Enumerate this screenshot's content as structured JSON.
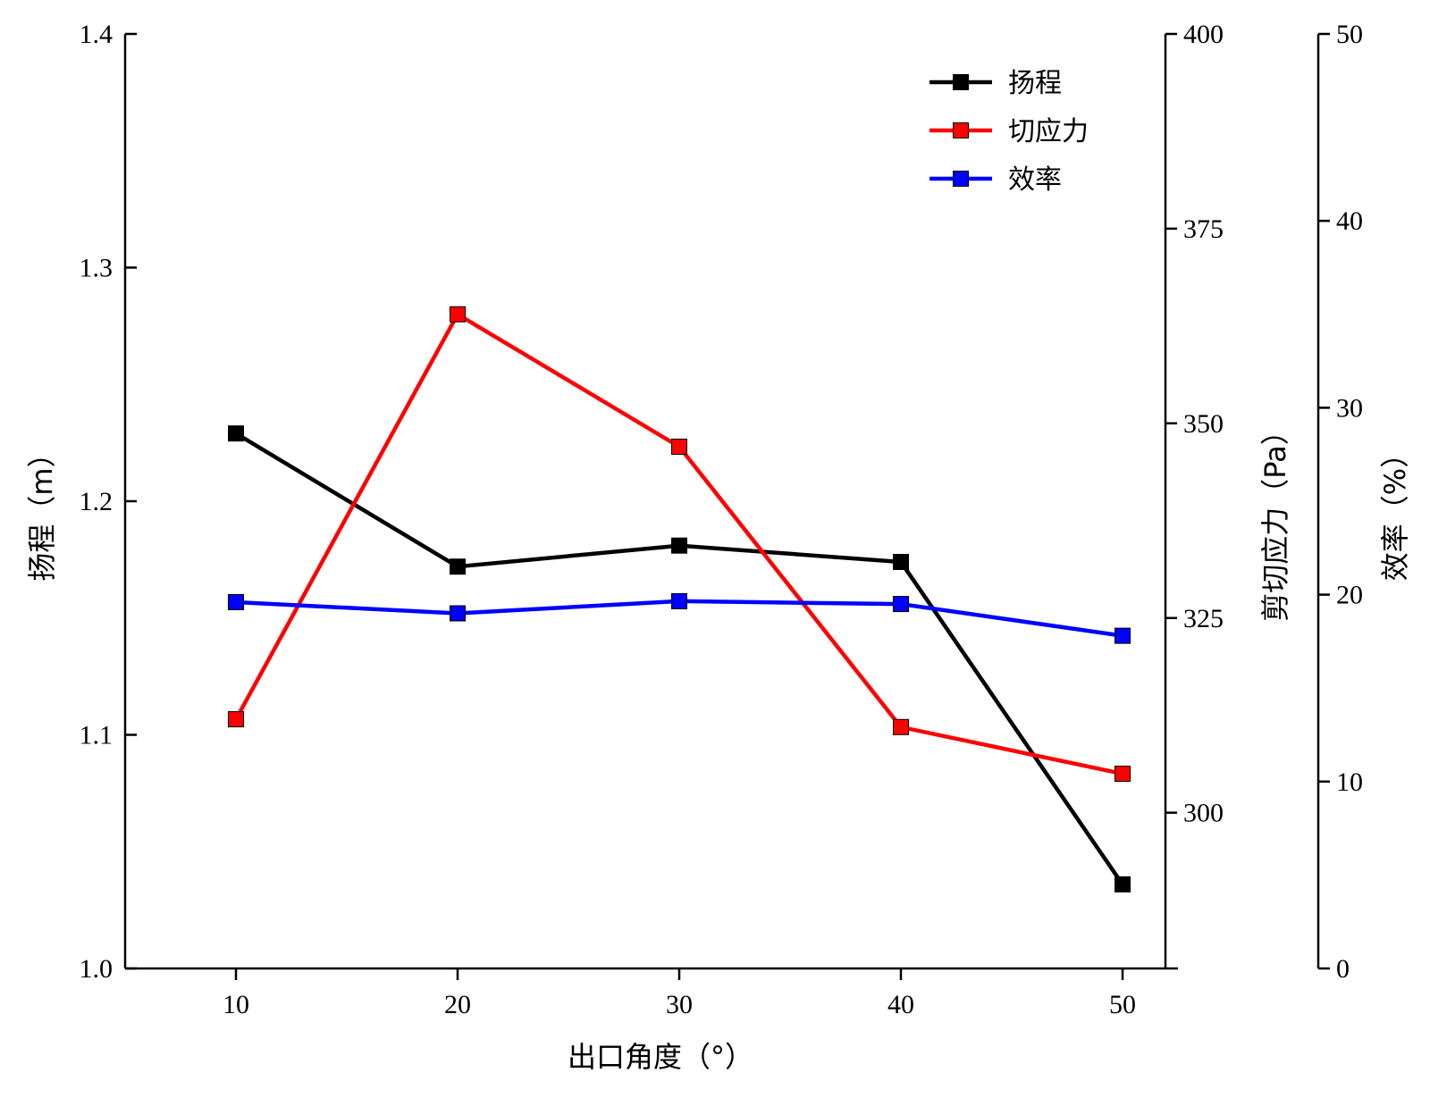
{
  "chart_data": {
    "type": "line",
    "x": [
      10,
      20,
      30,
      40,
      50
    ],
    "xlabel": "出口角度（°）",
    "x_ticks": [
      "10",
      "20",
      "30",
      "40",
      "50"
    ],
    "x_range": [
      5,
      52.5
    ],
    "axes": [
      {
        "id": "left",
        "label": "扬程（m）",
        "range": [
          1.0,
          1.4
        ],
        "ticks": [
          "1.0",
          "1.1",
          "1.2",
          "1.3",
          "1.4"
        ]
      },
      {
        "id": "right1",
        "label": "剪切应力（Pa）",
        "range": [
          280,
          400
        ],
        "ticks": [
          "300",
          "325",
          "350",
          "375",
          "400"
        ]
      },
      {
        "id": "right2",
        "label": "效率（%）",
        "range": [
          0,
          50
        ],
        "ticks": [
          "0",
          "10",
          "20",
          "30",
          "40",
          "50"
        ]
      }
    ],
    "series": [
      {
        "name": "扬程",
        "axis": "left",
        "color": "#000000",
        "values": [
          1.229,
          1.172,
          1.181,
          1.174,
          1.036
        ]
      },
      {
        "name": "切应力",
        "axis": "right1",
        "color": "#ff0000",
        "values": [
          312,
          364,
          347,
          311,
          305
        ]
      },
      {
        "name": "效率",
        "axis": "right2",
        "color": "#0000ff",
        "values": [
          19.6,
          19.0,
          19.65,
          19.5,
          17.8
        ]
      }
    ],
    "legend_position": "top-right"
  }
}
